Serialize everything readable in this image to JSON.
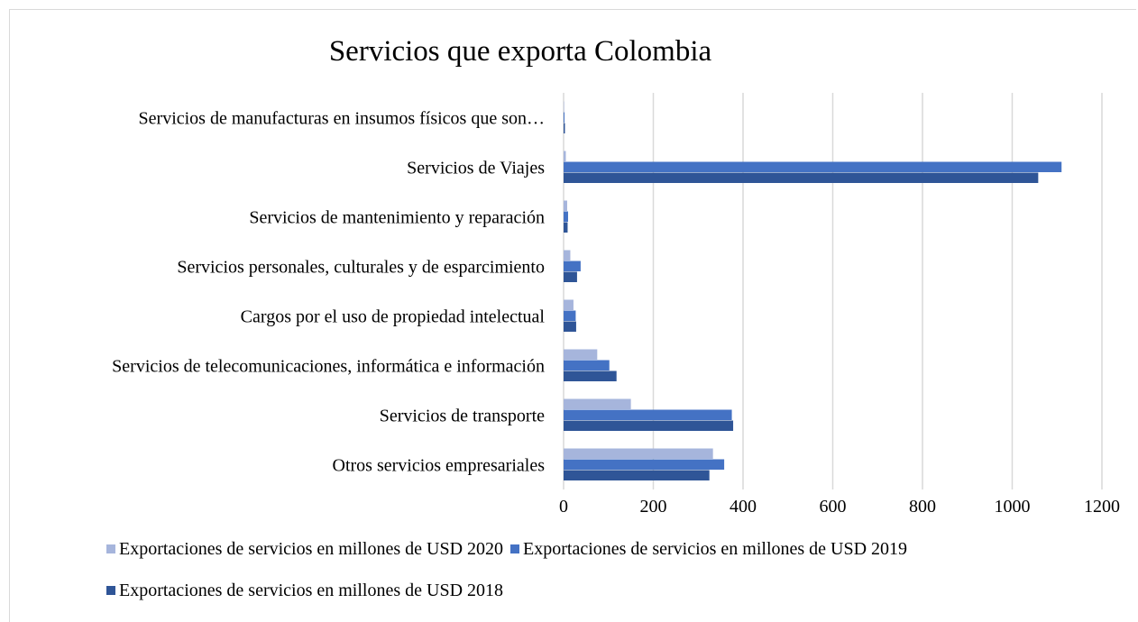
{
  "chart_data": {
    "type": "bar",
    "orientation": "horizontal",
    "title": "Servicios que exporta Colombia",
    "categories": [
      "Servicios de manufacturas en insumos físicos que son…",
      "Servicios de Viajes",
      "Servicios de mantenimiento y reparación",
      "Servicios personales, culturales y de esparcimiento",
      "Cargos por el uso de propiedad intelectual",
      "Servicios de telecomunicaciones, informática e información",
      "Servicios de transporte",
      "Otros servicios empresariales"
    ],
    "series": [
      {
        "name": "Exportaciones de servicios en millones de USD 2020",
        "color": "#a6b5dc",
        "values": [
          1,
          5,
          8,
          15,
          22,
          75,
          150,
          333
        ]
      },
      {
        "name": "Exportaciones de servicios en millones de USD 2019",
        "color": "#4472c4",
        "values": [
          2,
          1110,
          10,
          38,
          27,
          102,
          375,
          358
        ]
      },
      {
        "name": "Exportaciones de servicios en millones de USD 2018",
        "color": "#2f5597",
        "values": [
          3,
          1058,
          9,
          30,
          28,
          118,
          378,
          325
        ]
      }
    ],
    "xticks": [
      "0",
      "200",
      "400",
      "600",
      "800",
      "1000",
      "1200"
    ],
    "xlim": [
      0,
      1200
    ],
    "xlabel": "",
    "ylabel": "",
    "grid": true,
    "legend_position": "bottom"
  }
}
